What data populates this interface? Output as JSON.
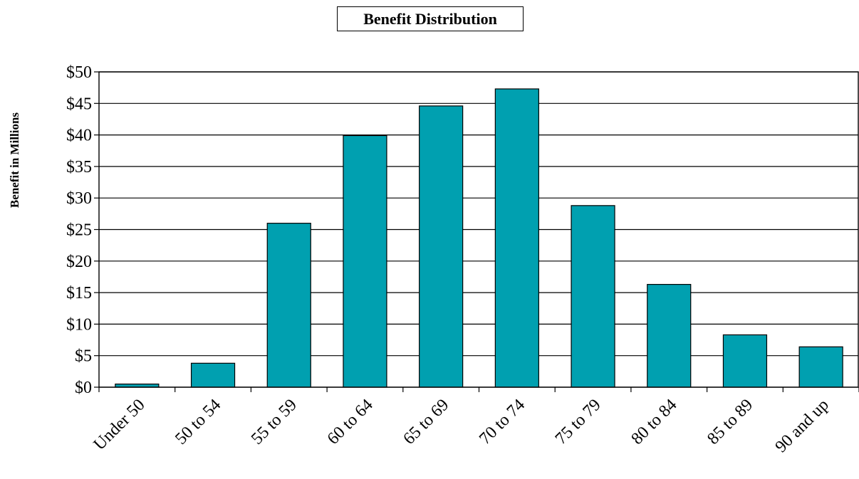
{
  "chart_data": {
    "type": "bar",
    "title": "Benefit Distribution",
    "xlabel": "",
    "ylabel": "Benefit in Millions",
    "categories": [
      "Under 50",
      "50 to 54",
      "55 to 59",
      "60 to 64",
      "65 to 69",
      "70 to 74",
      "75 to 79",
      "80 to 84",
      "85 to 89",
      "90 and up"
    ],
    "values": [
      0.5,
      3.8,
      26,
      39.9,
      44.6,
      47.3,
      28.8,
      16.3,
      8.3,
      6.4
    ],
    "ylim": [
      0,
      50
    ],
    "yticks": [
      0,
      5,
      10,
      15,
      20,
      25,
      30,
      35,
      40,
      45,
      50
    ],
    "ytick_labels": [
      "$0",
      "$5",
      "$10",
      "$15",
      "$20",
      "$25",
      "$30",
      "$35",
      "$40",
      "$45",
      "$50"
    ],
    "grid": true,
    "legend": "none",
    "bar_color": "#00A0B0"
  }
}
